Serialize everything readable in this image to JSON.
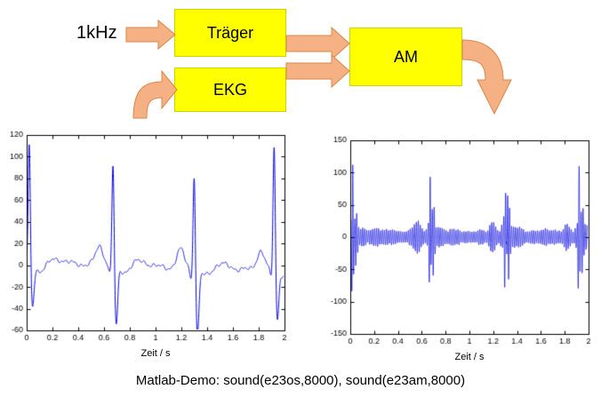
{
  "diagram": {
    "input_label": "1kHz",
    "boxes": [
      {
        "id": "traeger",
        "label": "Träger"
      },
      {
        "id": "ekg",
        "label": "EKG"
      },
      {
        "id": "am",
        "label": "AM"
      }
    ],
    "box_fill": "#FFFF00",
    "arrow_fill": "#F5B183",
    "arrow_stroke": "#DB8648"
  },
  "caption": "Matlab-Demo: sound(e23os,8000), sound(e23am,8000)",
  "chart_data": [
    {
      "type": "line",
      "name": "ekg-signal",
      "title": "",
      "xlabel": "Zeit / s",
      "ylabel": "",
      "xlim": [
        0,
        2
      ],
      "ylim": [
        -60,
        120
      ],
      "xticks": [
        0,
        0.2,
        0.4,
        0.6,
        0.8,
        1,
        1.2,
        1.4,
        1.6,
        1.8,
        2
      ],
      "yticks": [
        -60,
        -40,
        -20,
        0,
        20,
        40,
        60,
        80,
        100,
        120
      ],
      "grid": false,
      "legend": "none",
      "line_color": "#0000DD",
      "signal": {
        "kind": "ecg",
        "beats": [
          {
            "t": 0.02,
            "r": 115,
            "s": -38
          },
          {
            "t": 0.67,
            "r": 100,
            "s": -55
          },
          {
            "t": 1.3,
            "r": 95,
            "s": -62
          },
          {
            "t": 1.92,
            "r": 120,
            "s": -45
          }
        ],
        "p_wave": {
          "lead": 0.105,
          "amp": 17,
          "width": 0.03
        },
        "noise_amp": 3
      }
    },
    {
      "type": "line",
      "name": "am-signal",
      "title": "",
      "xlabel": "Zeit / s",
      "ylabel": "",
      "xlim": [
        0,
        2
      ],
      "ylim": [
        -150,
        150
      ],
      "xticks": [
        0,
        0.2,
        0.4,
        0.6,
        0.8,
        1,
        1.2,
        1.4,
        1.6,
        1.8,
        2
      ],
      "yticks": [
        -150,
        -100,
        -50,
        0,
        50,
        100,
        150
      ],
      "grid": false,
      "legend": "none",
      "line_color": "#0000DD",
      "signal": {
        "kind": "am",
        "carrier_hz_display": 60,
        "envelope_gain": 0.95,
        "envelope_offset": 8
      }
    }
  ]
}
